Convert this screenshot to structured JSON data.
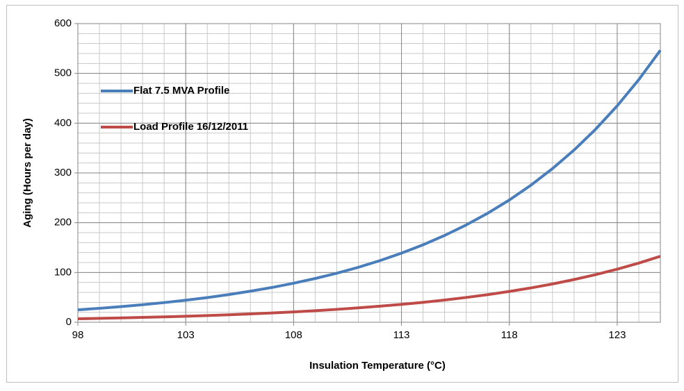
{
  "chart_data": {
    "type": "line",
    "x_label": "Insulation Temperature (°C)",
    "y_label": "Aging (Hours per day)",
    "x": [
      98,
      99,
      100,
      101,
      102,
      103,
      104,
      105,
      106,
      107,
      108,
      109,
      110,
      111,
      112,
      113,
      114,
      115,
      116,
      117,
      118,
      119,
      120,
      121,
      122,
      123,
      124,
      125
    ],
    "series": [
      {
        "name": "Flat 7.5 MVA Profile",
        "color": "#4a7ebb",
        "values": [
          25,
          28,
          31.4,
          35.2,
          39.5,
          44.3,
          49.6,
          55.6,
          62.4,
          69.9,
          78.4,
          87.9,
          98.5,
          110.4,
          123.8,
          138.8,
          155.6,
          174.4,
          195.5,
          219.1,
          245.6,
          275.4,
          308.7,
          346,
          387.9,
          434.8,
          487.4,
          546.4
        ]
      },
      {
        "name": "Load Profile 16/12/2011",
        "color": "#be4b48",
        "values": [
          7,
          7.8,
          8.7,
          9.7,
          10.8,
          12.1,
          13.5,
          15,
          16.7,
          18.7,
          20.8,
          23.2,
          25.9,
          28.9,
          32.2,
          35.9,
          40,
          44.6,
          49.8,
          55.5,
          61.9,
          69,
          76.9,
          85.8,
          95.6,
          106.6,
          118.9,
          132.6
        ]
      }
    ],
    "xlim": [
      98,
      125
    ],
    "xticks": [
      98,
      103,
      108,
      113,
      118,
      123
    ],
    "ylim": [
      0,
      600
    ],
    "yticks": [
      0,
      100,
      200,
      300,
      400,
      500,
      600
    ],
    "grid": true,
    "x_minor_step": 1,
    "y_minor_step": 20,
    "legend": "upper left"
  }
}
